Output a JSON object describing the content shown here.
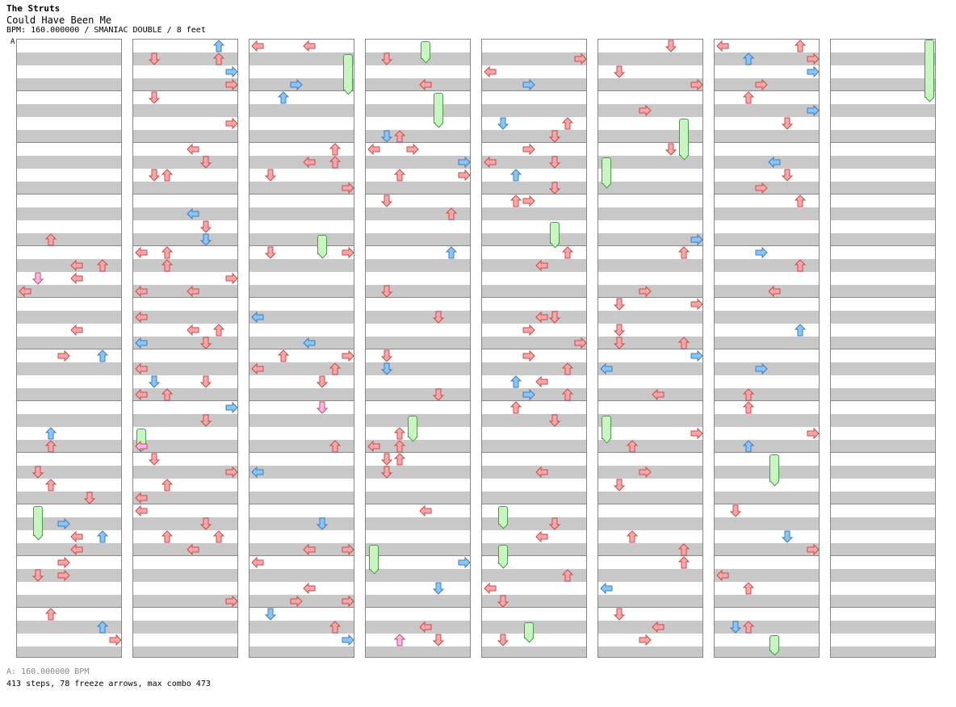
{
  "header": {
    "artist": "The Struts",
    "title": "Could Have Been Me",
    "info": "BPM: 160.000000 / SMANIAC DOUBLE / 8 feet"
  },
  "chart": {
    "column_count": 8,
    "measures_per_column": 12,
    "bpm_marker": "A"
  },
  "colors": {
    "arrow_red": "#f7a8a8",
    "arrow_red_stroke": "#d04848",
    "arrow_blue": "#8cc4f4",
    "arrow_blue_stroke": "#3c7cc4",
    "arrow_pink": "#f8b8f0",
    "freeze_fill": "#c9f5c3",
    "stripe": "#c8c8c8"
  },
  "footer": {
    "bpm_line": "A: 160.000000 BPM",
    "stats": "413 steps, 78 freeze arrows, max combo 473"
  }
}
